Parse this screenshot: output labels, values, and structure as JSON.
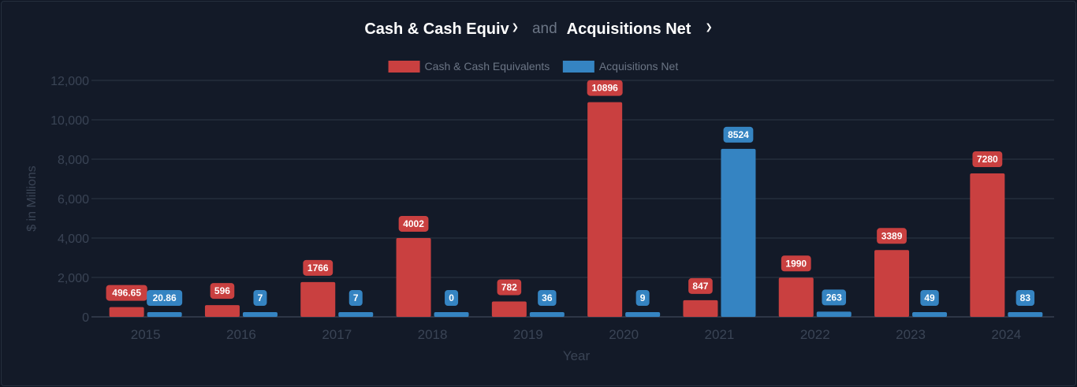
{
  "header": {
    "metric1_label": "Cash & Cash Equiv",
    "connector": "and",
    "metric2_label": "Acquisitions Net"
  },
  "chart_data": {
    "type": "bar",
    "xlabel": "Year",
    "ylabel": "$ in Millions",
    "ylim": [
      0,
      12000
    ],
    "yticks": [
      0,
      2000,
      4000,
      6000,
      8000,
      10000,
      12000
    ],
    "ytick_labels": [
      "0",
      "2,000",
      "4,000",
      "6,000",
      "8,000",
      "10,000",
      "12,000"
    ],
    "legend_position": "top-center",
    "categories": [
      "2015",
      "2016",
      "2017",
      "2018",
      "2019",
      "2020",
      "2021",
      "2022",
      "2023",
      "2024"
    ],
    "series": [
      {
        "name": "Cash & Cash Equivalents",
        "color": "#c94040",
        "values": [
          496.65,
          596,
          1766,
          4002,
          782,
          10896,
          847,
          1990,
          3389,
          7280
        ],
        "labels": [
          "496.65",
          "596",
          "1766",
          "4002",
          "782",
          "10896",
          "847",
          "1990",
          "3389",
          "7280"
        ]
      },
      {
        "name": "Acquisitions Net",
        "color": "#3584c2",
        "values": [
          20.86,
          7,
          7,
          0,
          36,
          9,
          8524,
          263,
          49,
          83
        ],
        "labels": [
          "20.86",
          "7",
          "7",
          "0",
          "36",
          "9",
          "8524",
          "263",
          "49",
          "83"
        ]
      }
    ]
  }
}
